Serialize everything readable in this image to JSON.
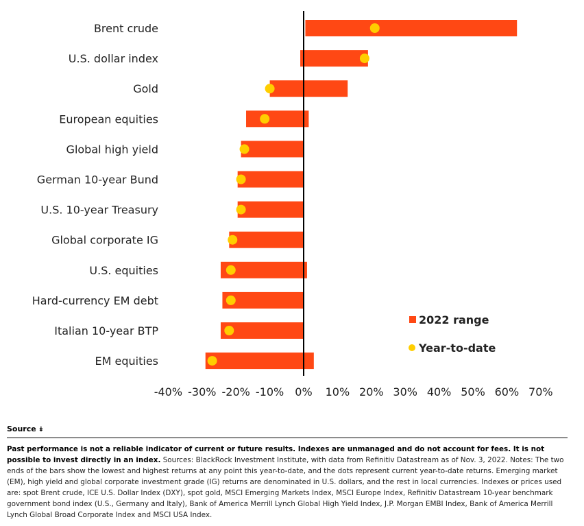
{
  "chart_data": {
    "type": "bar",
    "subtype": "floating-range-with-dots",
    "orientation": "horizontal",
    "categories": [
      "Brent crude",
      "U.S. dollar index",
      "Gold",
      "European equities",
      "Global high yield",
      "German 10-year Bund",
      "U.S. 10-year Treasury",
      "Global corporate IG",
      "U.S. equities",
      "Hard-currency EM debt",
      "Italian 10-year BTP",
      "EM equities"
    ],
    "series": [
      {
        "name": "2022 range",
        "color": "#FF4814",
        "low": [
          0.5,
          -1,
          -10,
          -17,
          -18.5,
          -19.5,
          -19.5,
          -22,
          -24.5,
          -24,
          -24.5,
          -29
        ],
        "high": [
          63,
          19,
          13,
          1.5,
          0,
          0,
          0,
          0,
          1,
          0,
          0,
          3
        ]
      },
      {
        "name": "Year-to-date",
        "color": "#FFCE00",
        "values": [
          21,
          18,
          -10,
          -11.5,
          -17.5,
          -18.5,
          -18.5,
          -21,
          -21.5,
          -21.5,
          -22,
          -27
        ]
      }
    ],
    "xlim": [
      -40,
      70
    ],
    "xticks": [
      "-40%",
      "-30%",
      "-20%",
      "-10%",
      "0%",
      "10%",
      "20%",
      "30%",
      "40%",
      "50%",
      "60%",
      "70%"
    ],
    "xtick_values": [
      -40,
      -30,
      -20,
      -10,
      0,
      10,
      20,
      30,
      40,
      50,
      60,
      70
    ],
    "xlabel": "",
    "ylabel": "",
    "title": "",
    "grid": false,
    "legend": {
      "position": "bottom-right",
      "items": [
        {
          "label": "2022 range",
          "marker": "square",
          "color": "#FF4814"
        },
        {
          "label": "Year-to-date",
          "marker": "circle",
          "color": "#FFCE00"
        }
      ]
    }
  },
  "source": {
    "toggle_label": "Source",
    "bold_text": "Past performance is not a reliable indicator of current or future results. Indexes are unmanaged and do not account for fees. It is not possible to invest directly in an index.",
    "body_text": " Sources: BlackRock Investment Institute, with data from Refinitiv Datastream as of Nov. 3, 2022. Notes: The two ends of the bars show the lowest and highest returns at any point this year-to-date, and the dots represent current year-to-date returns. Emerging market (EM), high yield and global corporate investment grade (IG) returns are denominated in U.S. dollars, and the rest in local currencies. Indexes or prices used are: spot Brent crude, ICE U.S. Dollar Index (DXY), spot gold, MSCI Emerging Markets Index, MSCI Europe Index, Refinitiv Datastream 10-year benchmark government bond index (U.S., Germany and Italy), Bank of America Merrill Lynch Global High Yield Index, J.P. Morgan EMBI Index, Bank of America Merrill Lynch Global Broad Corporate Index and MSCI USA Index."
  }
}
